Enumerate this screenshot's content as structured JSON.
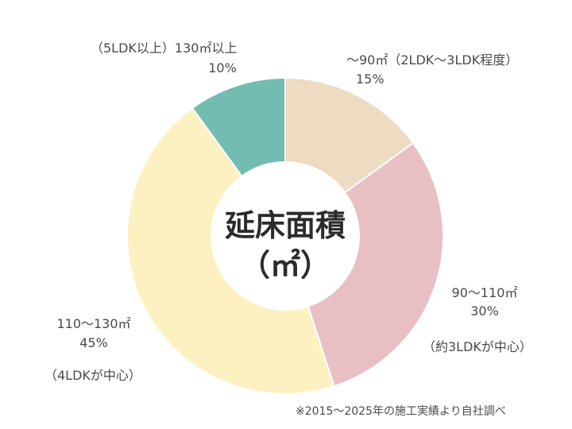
{
  "chart_data": {
    "type": "pie",
    "variant": "donut",
    "title": "延床面積",
    "title_unit": "（㎡）",
    "slices": [
      {
        "range": "〜90㎡",
        "category": "（2LDK〜3LDK程度）",
        "percent_label": "15%",
        "value": 15,
        "color": "#eddbc2"
      },
      {
        "range": "90〜110㎡",
        "category": "（約3LDKが中心）",
        "percent_label": "30%",
        "value": 30,
        "color": "#e8c0c3"
      },
      {
        "range": "110〜130㎡",
        "category": "（4LDKが中心）",
        "percent_label": "45%",
        "value": 45,
        "color": "#fdf1c1"
      },
      {
        "category_range": "（5LDK以上）130㎡以上",
        "percent_label": "10%",
        "value": 10,
        "color": "#73bcb2"
      }
    ],
    "footnote": "※2015〜2025年の施工実績より自社調べ"
  }
}
